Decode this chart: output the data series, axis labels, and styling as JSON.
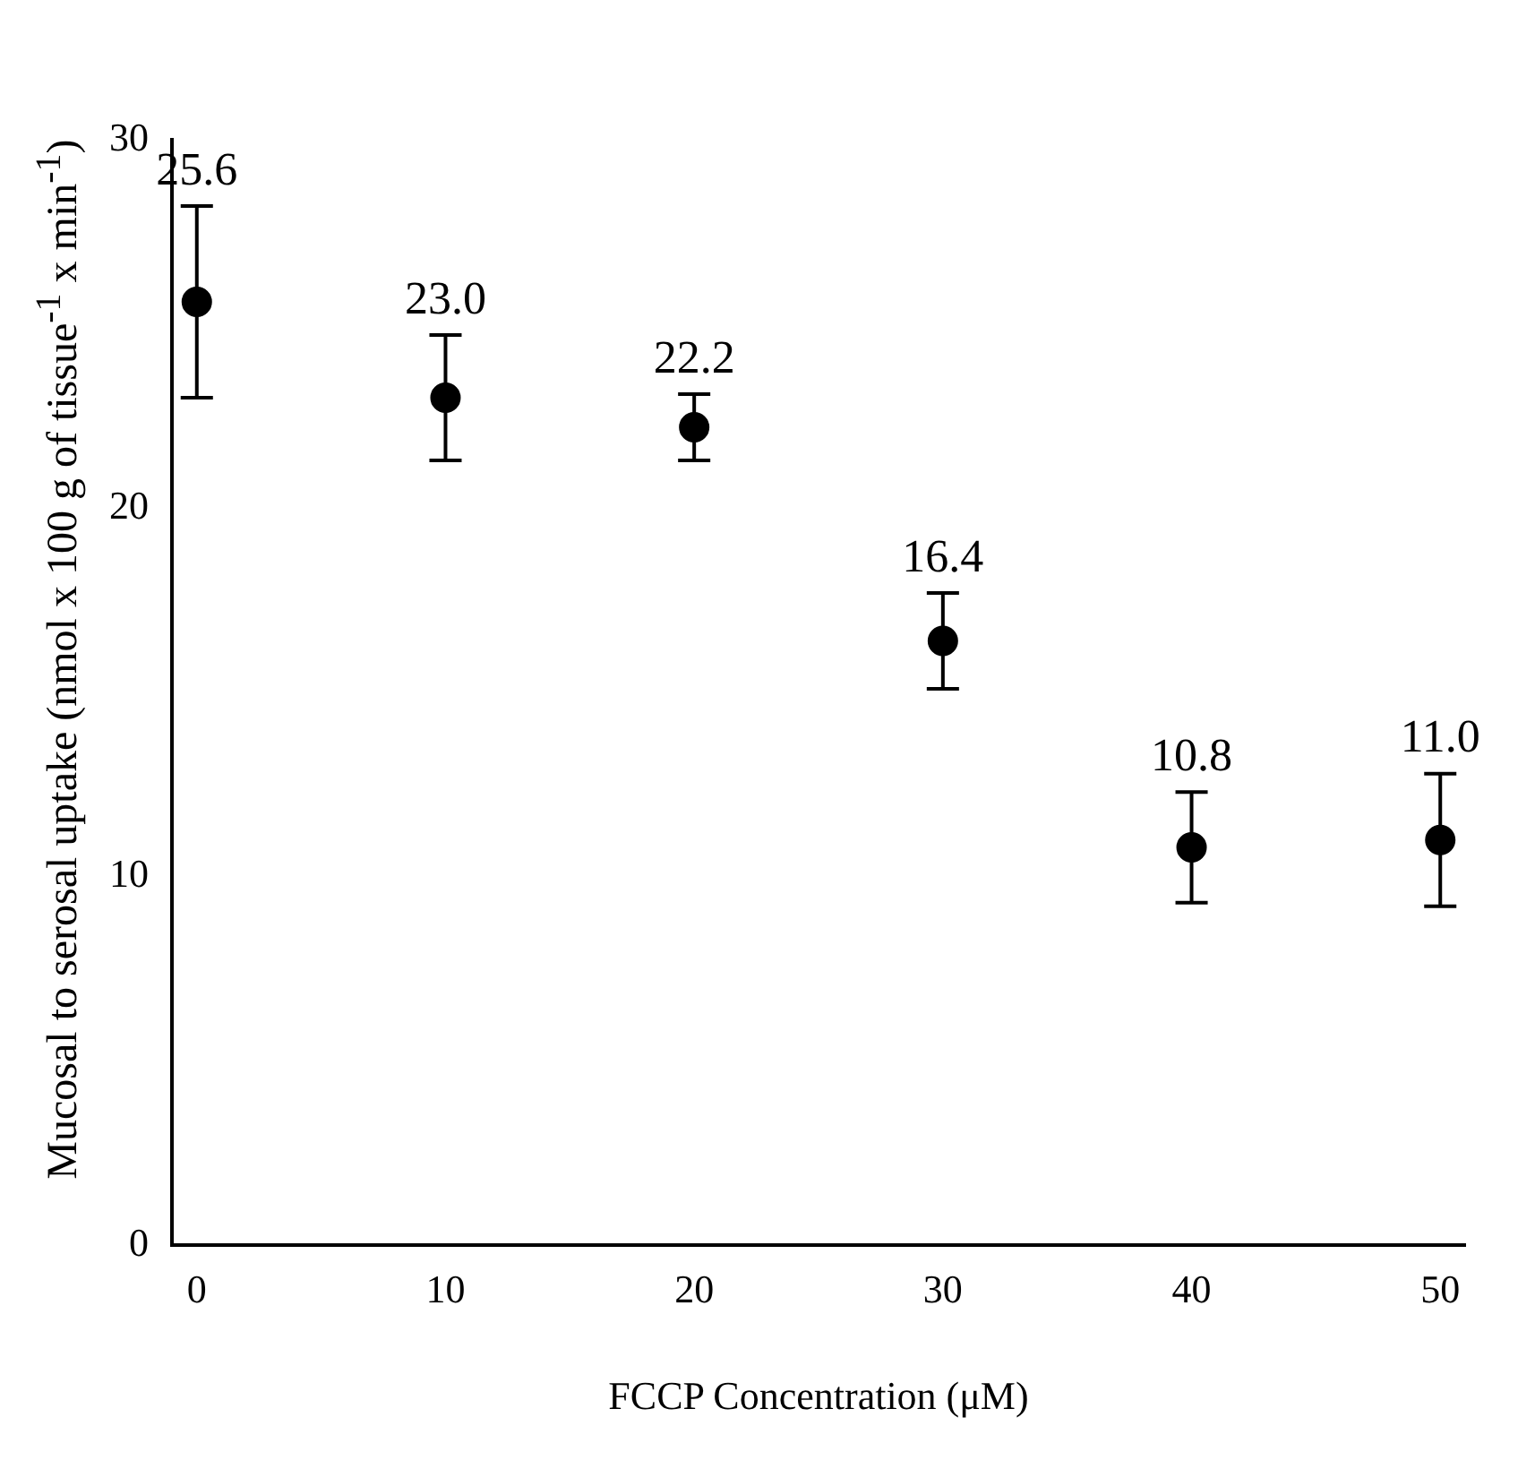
{
  "chart_data": {
    "type": "scatter",
    "xlabel": "FCCP Concentration (μM)",
    "ylabel": "Mucosal to serosal uptake (nmol x 100 g of tissue$^{-1}$ x min$^{-1}$)",
    "x": [
      0,
      10,
      20,
      30,
      40,
      50
    ],
    "series": [
      {
        "color": "#000000",
        "values": [
          25.6,
          23.0,
          22.2,
          16.4,
          10.8,
          11.0
        ],
        "errors": [
          2.6,
          1.7,
          0.9,
          1.3,
          1.5,
          1.8
        ],
        "value_labels": [
          "25.6",
          "23.0",
          "22.2",
          "16.4",
          "10.8",
          "11.0"
        ]
      }
    ],
    "xlim": [
      -1,
      51
    ],
    "xticks": [
      0,
      10,
      20,
      30,
      40,
      50
    ],
    "ylim": [
      0,
      30
    ],
    "yticks": [
      0,
      10,
      20,
      30
    ],
    "marker": "circle",
    "grid": false,
    "legend": false
  }
}
